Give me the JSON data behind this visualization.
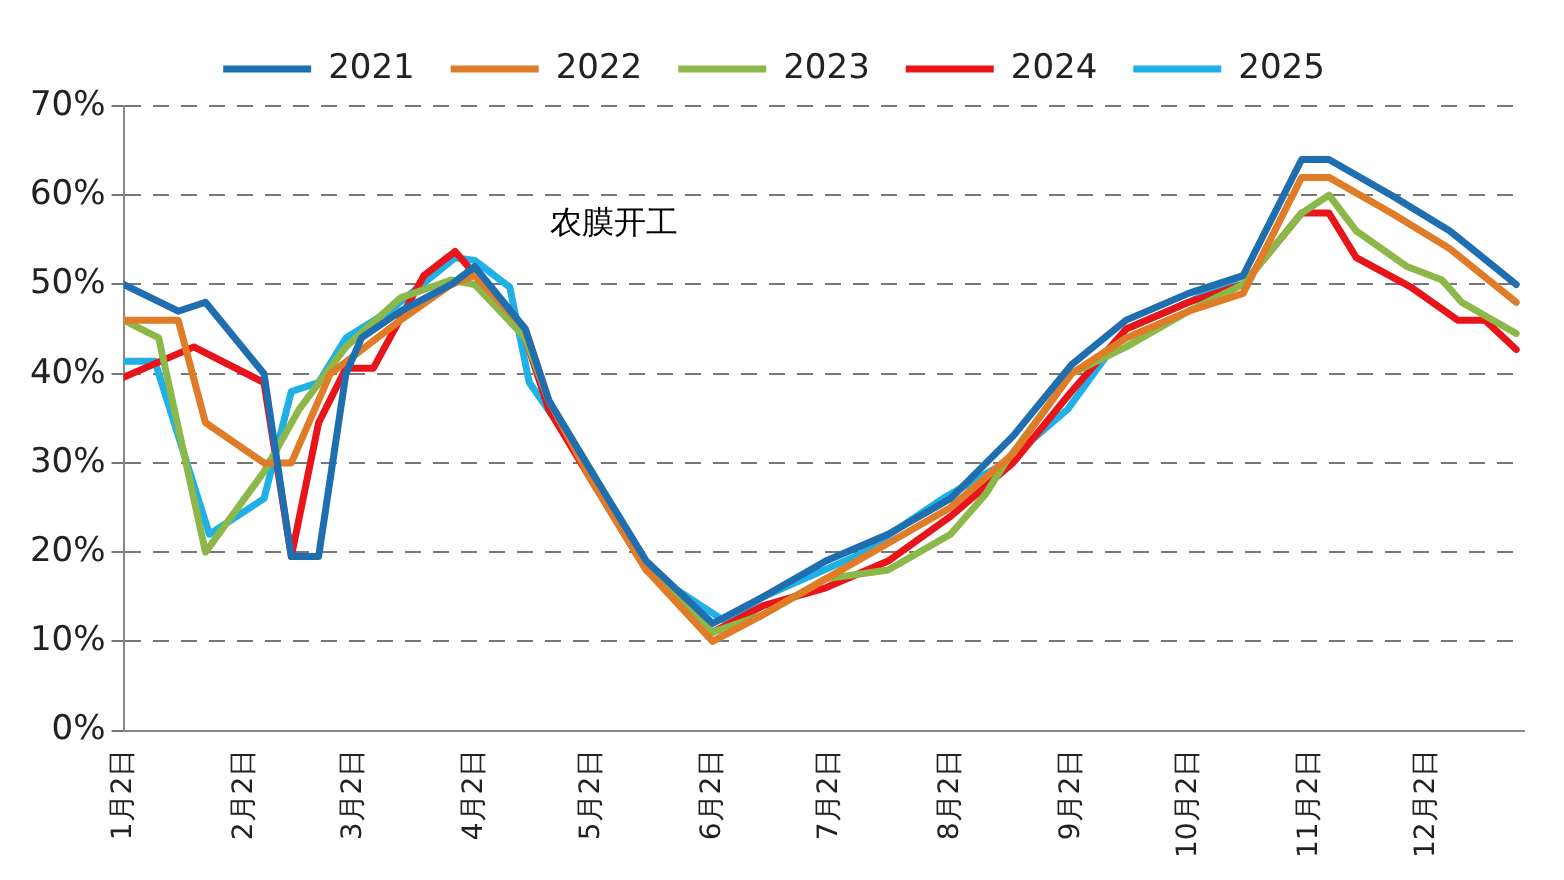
{
  "chart_data": {
    "type": "line",
    "annotations": [
      "农膜开工"
    ],
    "ylabel": null,
    "xlim": [
      "--01-02",
      "--12-27"
    ],
    "xticks": [
      {
        "value": "--01-02",
        "label": "1月2日"
      },
      {
        "value": "--02-02",
        "label": "2月2日"
      },
      {
        "value": "--03-02",
        "label": "3月2日"
      },
      {
        "value": "--04-02",
        "label": "4月2日"
      },
      {
        "value": "--05-02",
        "label": "5月2日"
      },
      {
        "value": "--06-02",
        "label": "6月2日"
      },
      {
        "value": "--07-02",
        "label": "7月2日"
      },
      {
        "value": "--08-02",
        "label": "8月2日"
      },
      {
        "value": "--09-02",
        "label": "9月2日"
      },
      {
        "value": "--10-02",
        "label": "10月2日"
      },
      {
        "value": "--11-02",
        "label": "11月2日"
      },
      {
        "value": "--12-02",
        "label": "12月2日"
      }
    ],
    "ylim": [
      0,
      70
    ],
    "yticks": [
      {
        "value": 0,
        "label": "0%"
      },
      {
        "value": 10,
        "label": "10%"
      },
      {
        "value": 20,
        "label": "20%"
      },
      {
        "value": 30,
        "label": "30%"
      },
      {
        "value": 40,
        "label": "40%"
      },
      {
        "value": 50,
        "label": "50%"
      },
      {
        "value": 60,
        "label": "60%"
      },
      {
        "value": 70,
        "label": "70%"
      }
    ],
    "grid": "y",
    "legend": "top",
    "marker": "none",
    "line_style": "solid",
    "series": [
      {
        "name": "2021",
        "color": "#1f6fb0",
        "x": [
          "--01-02",
          "--01-16",
          "--01-23",
          "--02-07",
          "--02-14",
          "--02-21",
          "--02-28",
          "--03-04",
          "--03-14",
          "--03-27",
          "--04-02",
          "--04-15",
          "--04-21",
          "--05-02",
          "--05-16",
          "--06-02",
          "--06-15",
          "--07-01",
          "--07-17",
          "--08-02",
          "--08-18",
          "--09-02",
          "--09-16",
          "--10-02",
          "--10-16",
          "--10-31",
          "--11-07",
          "--11-23",
          "--12-08",
          "--12-25"
        ],
        "values": [
          50,
          47,
          48,
          40,
          19.5,
          19.5,
          40,
          44,
          47,
          50,
          52,
          45,
          37,
          29,
          19,
          12,
          15,
          19,
          22,
          26,
          33,
          41,
          46,
          49,
          51,
          64,
          64,
          60,
          56,
          50
        ]
      },
      {
        "name": "2022",
        "color": "#e07b28",
        "x": [
          "--01-02",
          "--01-16",
          "--01-23",
          "--02-07",
          "--02-14",
          "--02-24",
          "--03-14",
          "--03-27",
          "--04-02",
          "--04-15",
          "--04-21",
          "--05-02",
          "--05-16",
          "--06-02",
          "--06-15",
          "--07-01",
          "--07-17",
          "--08-02",
          "--08-18",
          "--09-02",
          "--09-16",
          "--10-02",
          "--10-16",
          "--10-31",
          "--11-07",
          "--11-23",
          "--12-08",
          "--12-25"
        ],
        "values": [
          46,
          46,
          34.5,
          30,
          30,
          40,
          46,
          50,
          51,
          45,
          37,
          28,
          18,
          10,
          13,
          17,
          21,
          25,
          31,
          40,
          44,
          47,
          49,
          62,
          62,
          58,
          54,
          48
        ]
      },
      {
        "name": "2023",
        "color": "#8cb84a",
        "x": [
          "--01-02",
          "--01-11",
          "--01-23",
          "--02-07",
          "--02-16",
          "--02-28",
          "--03-14",
          "--03-27",
          "--04-02",
          "--04-15",
          "--04-21",
          "--05-02",
          "--05-16",
          "--06-02",
          "--06-15",
          "--07-01",
          "--07-17",
          "--08-02",
          "--08-11",
          "--08-16",
          "--09-02",
          "--09-16",
          "--10-02",
          "--10-16",
          "--10-31",
          "--11-07",
          "--11-14",
          "--11-27",
          "--12-06",
          "--12-11",
          "--12-25"
        ],
        "values": [
          46,
          44,
          20,
          29,
          36,
          43,
          48.5,
          50.5,
          50,
          44,
          37,
          29,
          18,
          11,
          13,
          17,
          18,
          22,
          26.5,
          30,
          40,
          43,
          47,
          50,
          58,
          60,
          56,
          52,
          50.5,
          48,
          44.5
        ]
      },
      {
        "name": "2024",
        "color": "#e8141a",
        "x": [
          "--01-02",
          "--01-20",
          "--02-07",
          "--02-14",
          "--02-21",
          "--02-28",
          "--03-07",
          "--03-20",
          "--03-28",
          "--04-07",
          "--04-15",
          "--04-21",
          "--05-02",
          "--05-16",
          "--06-02",
          "--06-15",
          "--07-01",
          "--07-17",
          "--08-02",
          "--08-18",
          "--09-02",
          "--09-16",
          "--10-02",
          "--10-16",
          "--10-31",
          "--11-07",
          "--11-14",
          "--11-28",
          "--12-10",
          "--12-17",
          "--12-25"
        ],
        "values": [
          39.6,
          43,
          39,
          19.5,
          34.5,
          40.6,
          40.6,
          51,
          53.7,
          48.6,
          44,
          36,
          28,
          18,
          11,
          14,
          16,
          19,
          24,
          30,
          38,
          45,
          48,
          50,
          58,
          58,
          53,
          49.7,
          46,
          46,
          42.7
        ]
      },
      {
        "name": "2025",
        "color": "#1fb0e8",
        "x": [
          "--01-02",
          "--01-10",
          "--01-24",
          "--02-07",
          "--02-14",
          "--02-21",
          "--02-28",
          "--03-11",
          "--03-28",
          "--04-02",
          "--04-11",
          "--04-16",
          "--05-02",
          "--05-16",
          "--06-05",
          "--06-15",
          "--07-10",
          "--07-31",
          "--08-16",
          "--09-01",
          "--09-16",
          "--10-02",
          "--10-16"
        ],
        "values": [
          41.4,
          41.4,
          22,
          26,
          38,
          39,
          44,
          47,
          53,
          52.7,
          49.7,
          39,
          29,
          18,
          12.3,
          15,
          19.8,
          26,
          30,
          36,
          45,
          48,
          51
        ]
      }
    ]
  }
}
